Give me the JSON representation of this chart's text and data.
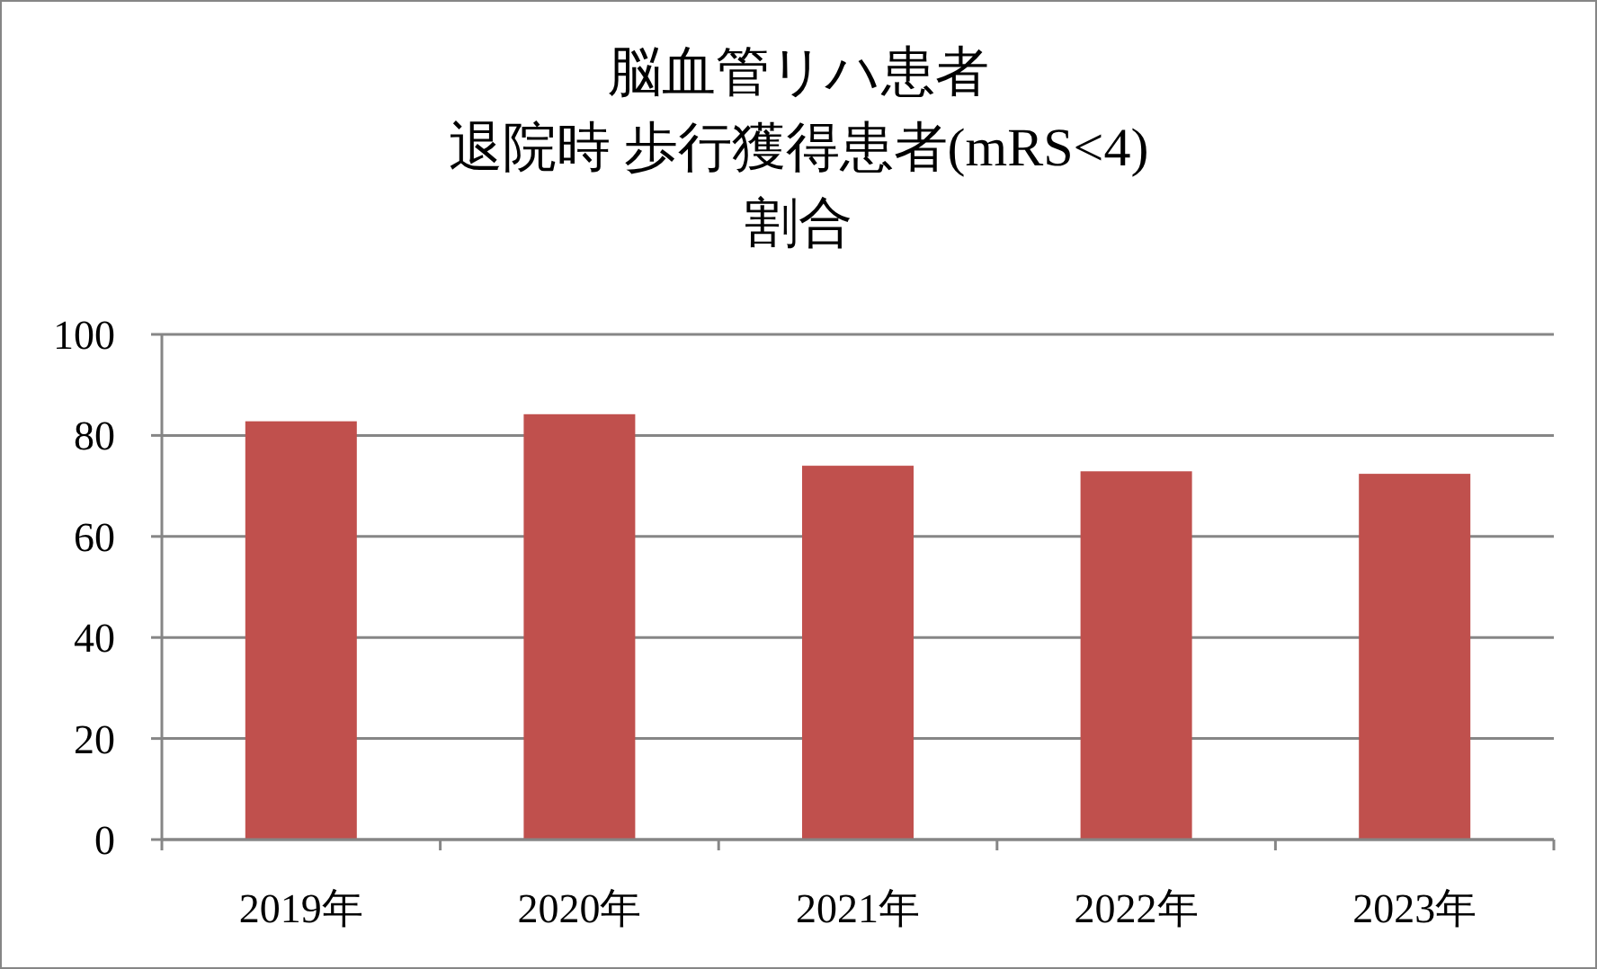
{
  "chart_data": {
    "type": "bar",
    "title": [
      "脳血管リハ患者",
      "退院時 歩行獲得患者(mRS<4)",
      "割合"
    ],
    "categories": [
      "2019年",
      "2020年",
      "2021年",
      "2022年",
      "2023年"
    ],
    "values": [
      82.8,
      84.2,
      74.0,
      72.9,
      72.4
    ],
    "color": "#c0504d",
    "ylim": [
      0,
      100
    ],
    "yticks": [
      0,
      20,
      40,
      60,
      80,
      100
    ],
    "grid": "y"
  }
}
